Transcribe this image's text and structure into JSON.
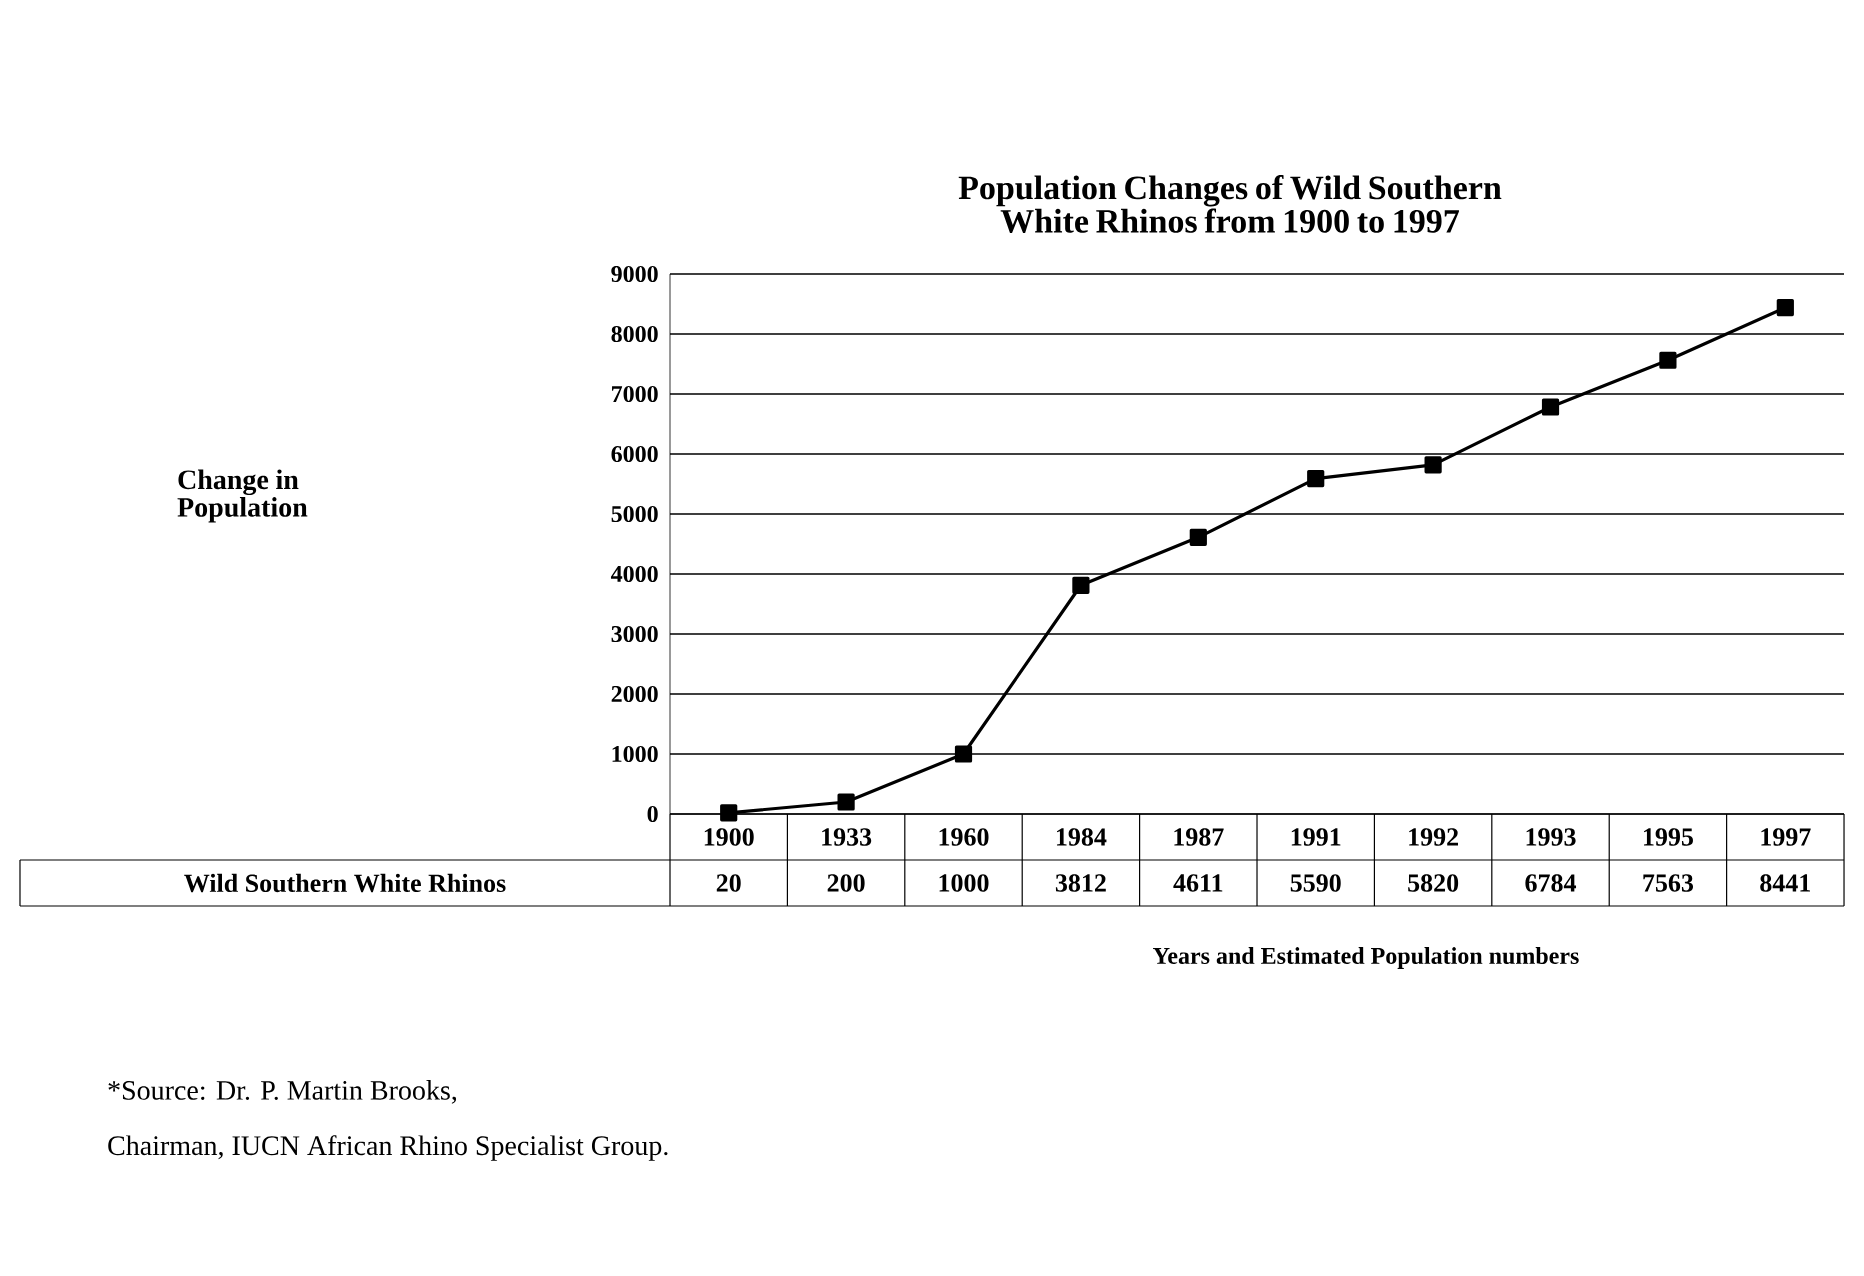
{
  "chart_data": {
    "type": "line",
    "title": "Population Changes of Wild Southern White Rhinos from 1900 to 1997",
    "xlabel": "Years and Estimated Population numbers",
    "categories": [
      "1900",
      "1933",
      "1960",
      "1984",
      "1987",
      "1991",
      "1992",
      "1993",
      "1995",
      "1997"
    ],
    "series": [
      {
        "name": "Wild Southern White Rhinos",
        "color": "#000000",
        "values": [
          20,
          200,
          1000,
          3812,
          4611,
          5590,
          5820,
          6784,
          7563,
          8441
        ]
      }
    ],
    "ylim": [
      0,
      9000
    ],
    "yticks": [
      0,
      1000,
      2000,
      3000,
      4000,
      5000,
      6000,
      7000,
      8000,
      9000
    ],
    "grid": "y",
    "marker": "square",
    "line_style": "solid",
    "data_labels": true,
    "annotations": [
      "Change in Population",
      "*Source:  Dr. P. Martin Brooks,",
      "Chairman, IUCN African Rhino Specialist Group."
    ]
  }
}
